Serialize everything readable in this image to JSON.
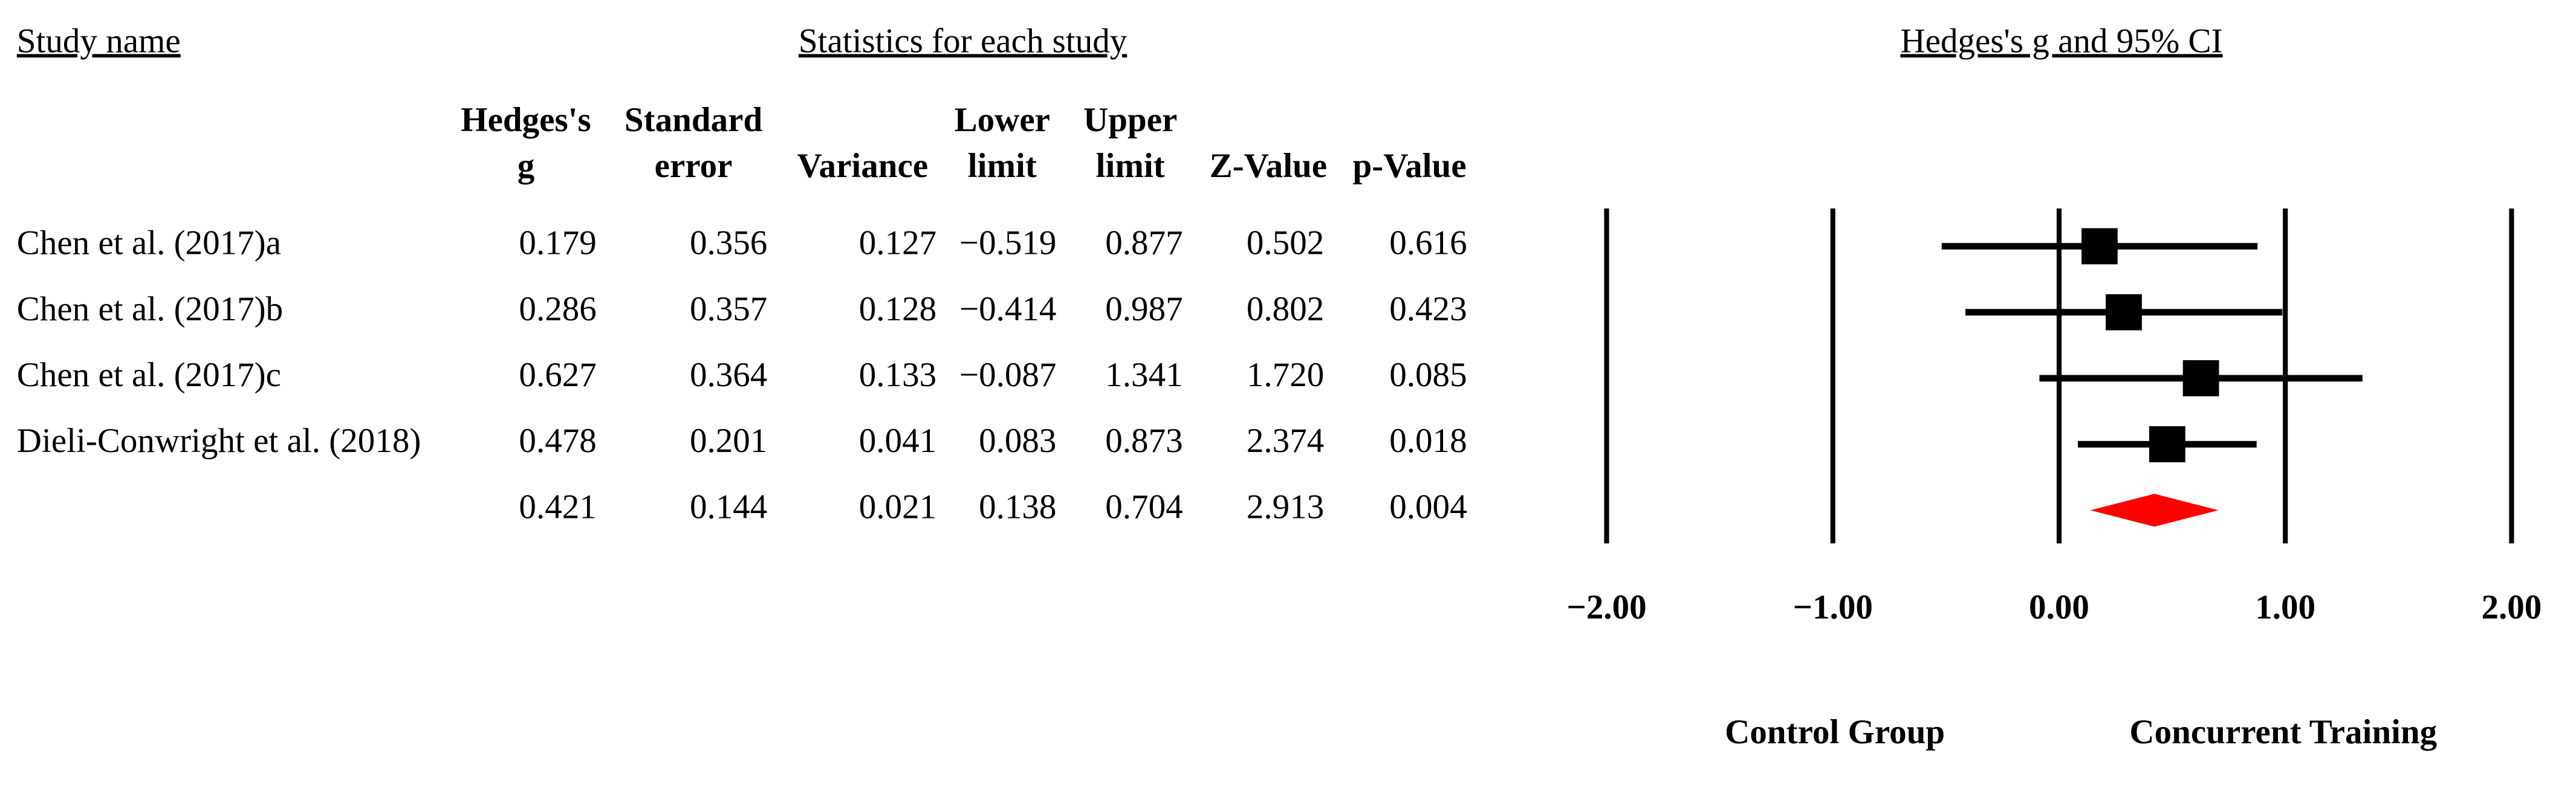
{
  "chart_data": {
    "type": "forest",
    "study_heading": "Study name",
    "stats_heading": "Statistics for each study",
    "title": "Hedges's g and 95% CI",
    "studies": [
      "Chen et al. (2017)a",
      "Chen et al. (2017)b",
      "Chen et al. (2017)c",
      "Dieli-Conwright et al. (2018)",
      null
    ],
    "columns": [
      {
        "header": [
          "Hedges's",
          "g"
        ],
        "values": [
          0.179,
          0.286,
          0.627,
          0.478,
          0.421
        ]
      },
      {
        "header": [
          "Standard",
          "error"
        ],
        "values": [
          0.356,
          0.357,
          0.364,
          0.201,
          0.144
        ]
      },
      {
        "header": [
          "",
          "Variance"
        ],
        "values": [
          0.127,
          0.128,
          0.133,
          0.041,
          0.021
        ]
      },
      {
        "header": [
          "Lower",
          "limit"
        ],
        "values": [
          -0.519,
          -0.414,
          -0.087,
          0.083,
          0.138
        ],
        "value_labels": [
          "−0.519",
          "−0.414",
          "−0.087",
          "0.083",
          "0.138"
        ]
      },
      {
        "header": [
          "Upper",
          "limit"
        ],
        "values": [
          0.877,
          0.987,
          1.341,
          0.873,
          0.704
        ]
      },
      {
        "header": [
          "",
          "Z-Value"
        ],
        "values": [
          0.502,
          0.802,
          1.72,
          2.374,
          2.913
        ],
        "value_labels": [
          "0.502",
          "0.802",
          "1.720",
          "2.374",
          "2.913"
        ]
      },
      {
        "header": [
          "",
          "p-Value"
        ],
        "values": [
          0.616,
          0.423,
          0.085,
          0.018,
          0.004
        ]
      }
    ],
    "xlim": [
      -2,
      2
    ],
    "xticks": [
      {
        "value": -2,
        "label": "−2.00"
      },
      {
        "value": -1,
        "label": "−1.00"
      },
      {
        "value": 0,
        "label": "0.00"
      },
      {
        "value": 1,
        "label": "1.00"
      },
      {
        "value": 2,
        "label": "2.00"
      }
    ],
    "grid": true,
    "left_label": "Control Group",
    "right_label": "Concurrent Training",
    "marker_color": "#000000",
    "summary_color": "#ff0000"
  }
}
